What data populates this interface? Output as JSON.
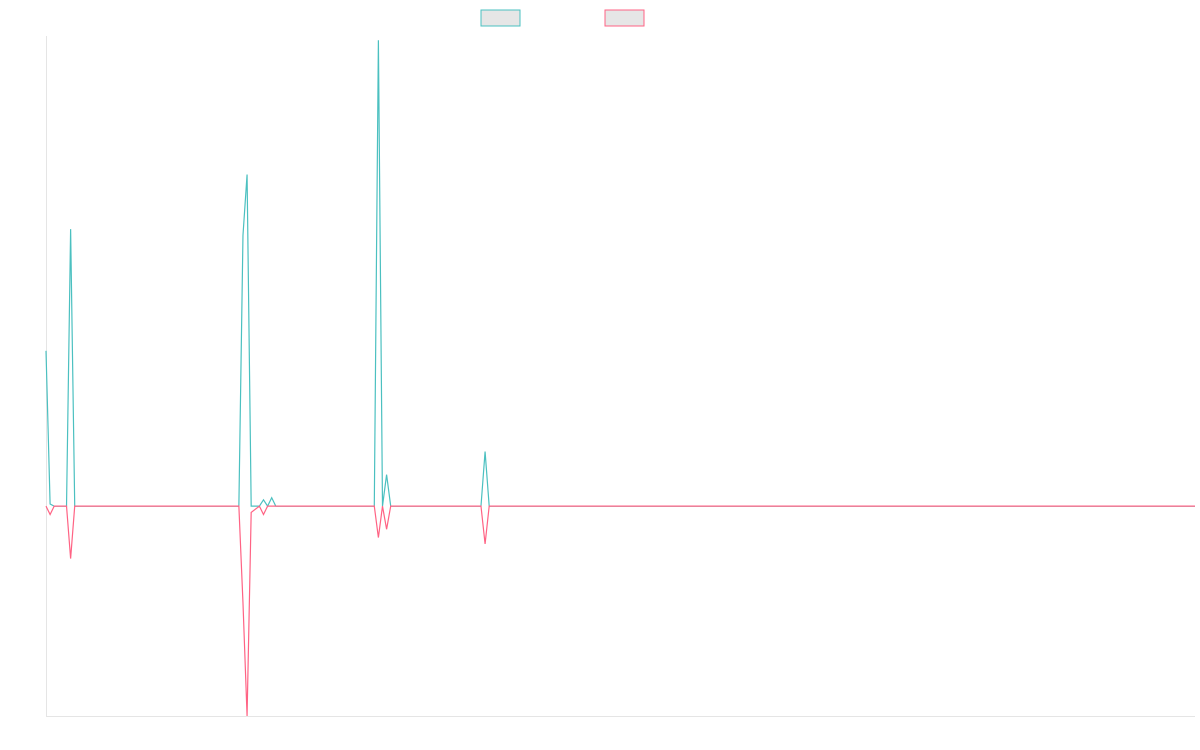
{
  "chart_data": {
    "type": "line",
    "title": "",
    "xlabel": "",
    "ylabel": "",
    "x_range": [
      0,
      280
    ],
    "ylim": [
      -100,
      224
    ],
    "grid": false,
    "legend_position": "top-center",
    "series": [
      {
        "color": "#4bc0c0",
        "points": [
          [
            0,
            74
          ],
          [
            1,
            1
          ],
          [
            2,
            0
          ],
          [
            5,
            0
          ],
          [
            6,
            132
          ],
          [
            7,
            0
          ],
          [
            12,
            0
          ],
          [
            47,
            0
          ],
          [
            48,
            129
          ],
          [
            49,
            158
          ],
          [
            50,
            0
          ],
          [
            52,
            0
          ],
          [
            53,
            3
          ],
          [
            54,
            0
          ],
          [
            55,
            4
          ],
          [
            56,
            0
          ],
          [
            80,
            0
          ],
          [
            81,
            222
          ],
          [
            82,
            0
          ],
          [
            83,
            15
          ],
          [
            84,
            0
          ],
          [
            106,
            0
          ],
          [
            107,
            26
          ],
          [
            108,
            0
          ],
          [
            280,
            0
          ]
        ]
      },
      {
        "color": "#ff6384",
        "points": [
          [
            0,
            0
          ],
          [
            1,
            -4
          ],
          [
            2,
            0
          ],
          [
            5,
            0
          ],
          [
            6,
            -25
          ],
          [
            7,
            0
          ],
          [
            12,
            0
          ],
          [
            47,
            0
          ],
          [
            48,
            -46
          ],
          [
            49,
            -100
          ],
          [
            50,
            -3
          ],
          [
            52,
            0
          ],
          [
            53,
            -4
          ],
          [
            54,
            0
          ],
          [
            80,
            0
          ],
          [
            81,
            -15
          ],
          [
            82,
            0
          ],
          [
            83,
            -11
          ],
          [
            84,
            0
          ],
          [
            106,
            0
          ],
          [
            107,
            -18
          ],
          [
            108,
            0
          ],
          [
            280,
            0
          ]
        ]
      }
    ]
  }
}
